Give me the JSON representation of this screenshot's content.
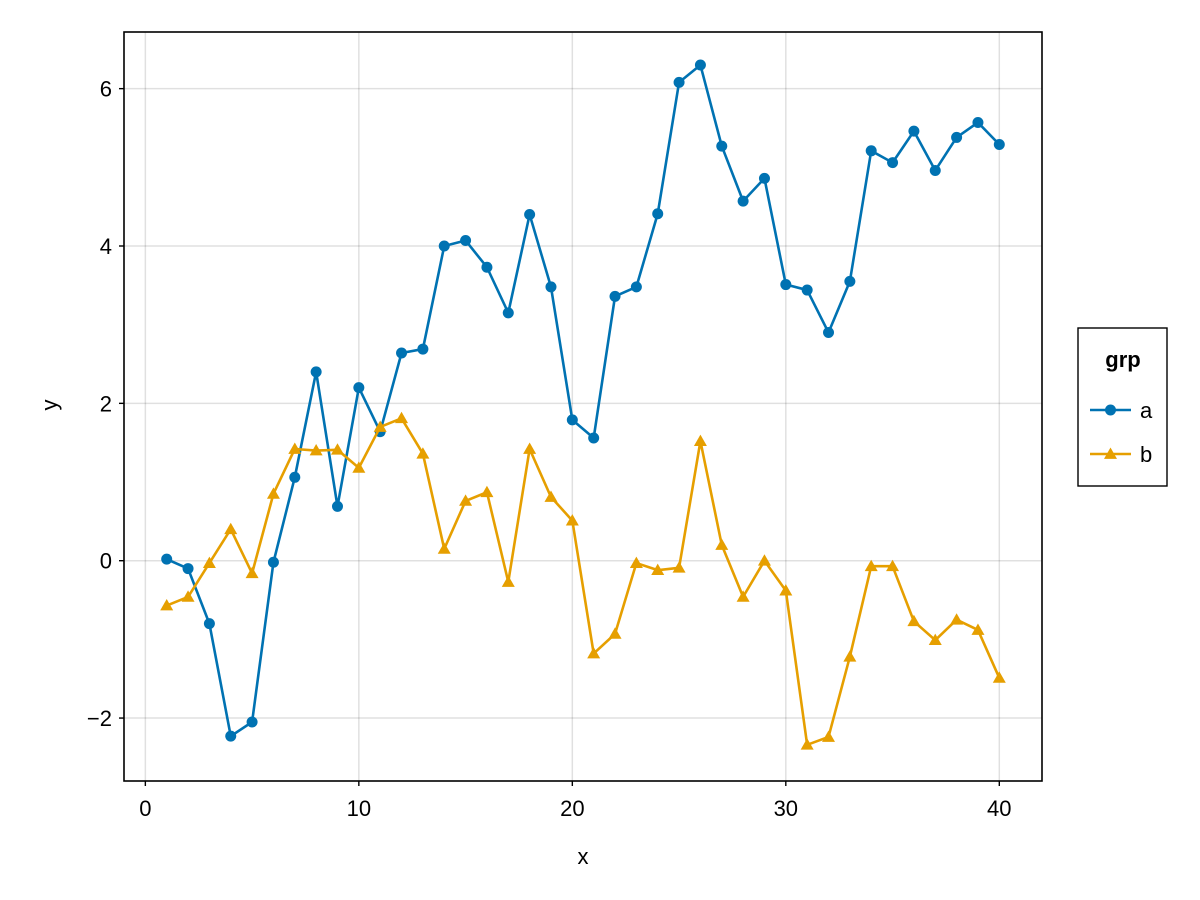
{
  "chart_data": {
    "type": "line",
    "xlabel": "x",
    "ylabel": "y",
    "xlim": [
      -1,
      42
    ],
    "ylim": [
      -2.8,
      6.72
    ],
    "x_ticks": [
      0,
      10,
      20,
      30,
      40
    ],
    "y_ticks": [
      -2,
      0,
      2,
      4,
      6
    ],
    "y_tick_labels": [
      "−2",
      "0",
      "2",
      "4",
      "6"
    ],
    "grid": true,
    "legend": {
      "title": "grp",
      "position": "right"
    },
    "x": [
      1,
      2,
      3,
      4,
      5,
      6,
      7,
      8,
      9,
      10,
      11,
      12,
      13,
      14,
      15,
      16,
      17,
      18,
      19,
      20,
      21,
      22,
      23,
      24,
      25,
      26,
      27,
      28,
      29,
      30,
      31,
      32,
      33,
      34,
      35,
      36,
      37,
      38,
      39,
      40
    ],
    "series": [
      {
        "name": "a",
        "color": "#0072b2",
        "marker": "circle",
        "values": [
          0.02,
          -0.1,
          -0.8,
          -2.23,
          -2.05,
          -0.02,
          1.06,
          2.4,
          0.69,
          2.2,
          1.64,
          2.64,
          2.69,
          4.0,
          4.07,
          3.73,
          3.15,
          4.4,
          3.48,
          1.79,
          1.56,
          3.36,
          3.48,
          4.41,
          6.08,
          6.3,
          5.27,
          4.57,
          4.86,
          3.51,
          3.44,
          2.9,
          3.55,
          5.21,
          5.06,
          5.46,
          4.96,
          5.38,
          5.57,
          5.29
        ]
      },
      {
        "name": "b",
        "color": "#e69f00",
        "marker": "triangle",
        "values": [
          -0.57,
          -0.46,
          -0.03,
          0.4,
          -0.16,
          0.85,
          1.42,
          1.4,
          1.41,
          1.18,
          1.7,
          1.81,
          1.36,
          0.15,
          0.76,
          0.87,
          -0.27,
          1.42,
          0.81,
          0.51,
          -1.18,
          -0.93,
          -0.03,
          -0.12,
          -0.09,
          1.52,
          0.2,
          -0.46,
          0.0,
          -0.38,
          -2.34,
          -2.24,
          -1.22,
          -0.07,
          -0.07,
          -0.77,
          -1.01,
          -0.75,
          -0.88,
          -1.49
        ]
      }
    ]
  }
}
